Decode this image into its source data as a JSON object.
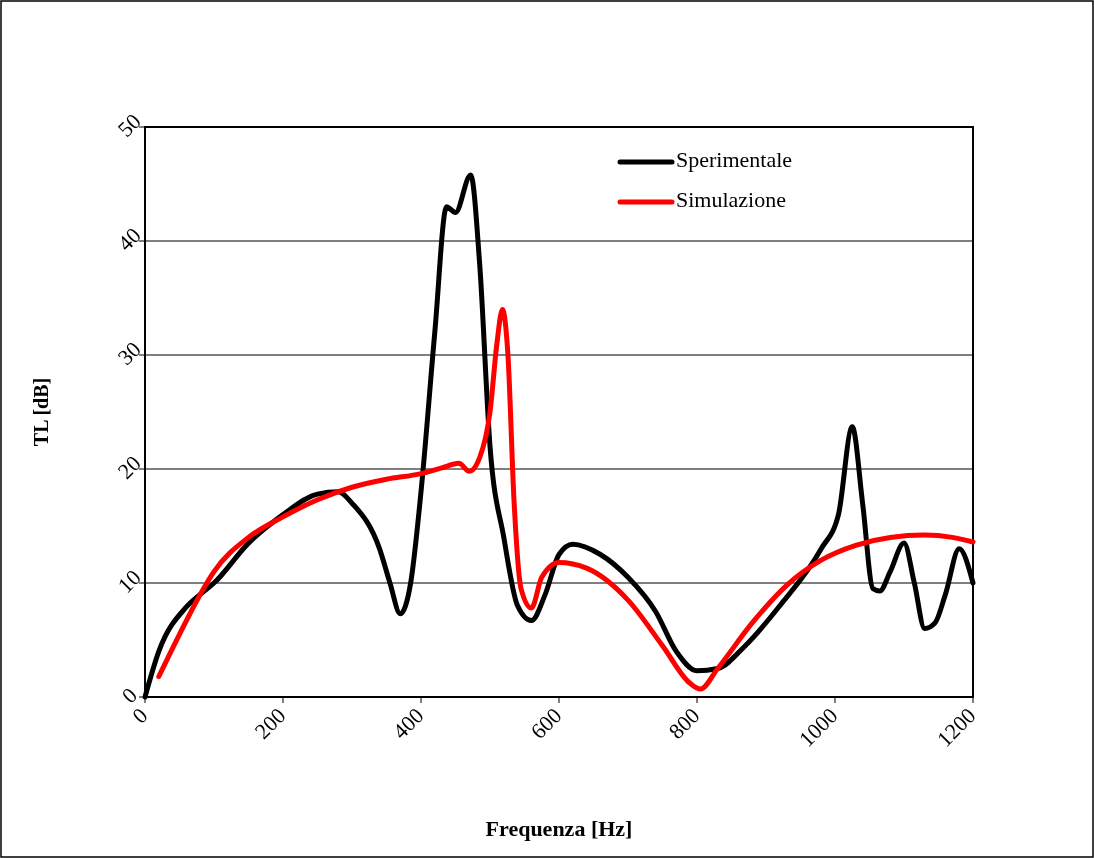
{
  "chart_data": {
    "type": "line",
    "xlabel": "Frequenza [Hz]",
    "ylabel": "TL [dB]",
    "xlim": [
      0,
      1200
    ],
    "xticks": [
      0,
      200,
      400,
      600,
      800,
      1000,
      1200
    ],
    "ylim": [
      0,
      50
    ],
    "yticks": [
      0,
      10,
      20,
      30,
      40,
      50
    ],
    "grid": "y",
    "legend": "top right",
    "marker": "none",
    "line_style": "solid",
    "series": [
      {
        "name": "Sperimentale",
        "color": "#000000",
        "x": [
          0,
          20,
          60,
          80,
          100,
          150,
          200,
          250,
          280,
          300,
          340,
          355,
          370,
          385,
          400,
          420,
          437,
          450,
          472,
          485,
          500,
          520,
          540,
          560,
          580,
          600,
          620,
          660,
          700,
          740,
          770,
          800,
          830,
          870,
          920,
          980,
          1005,
          1025,
          1040,
          1055,
          1065,
          1080,
          1100,
          1115,
          1130,
          1145,
          1160,
          1180,
          1200
        ],
        "values": [
          0,
          4,
          7.9,
          9,
          10,
          13.5,
          16,
          17.8,
          18,
          17,
          13,
          10,
          7.3,
          10,
          18,
          32,
          43,
          42.5,
          45.8,
          38,
          22,
          14,
          8,
          6.7,
          9,
          12.5,
          13.4,
          12.5,
          10.5,
          7.5,
          4,
          2.3,
          2.5,
          4.5,
          8,
          13,
          16,
          23.7,
          17,
          9.5,
          9.3,
          11,
          13.5,
          10,
          6,
          6.5,
          9,
          13,
          10
        ]
      },
      {
        "name": "Simulazione",
        "color": "#ff0000",
        "x": [
          20,
          50,
          80,
          100,
          150,
          200,
          250,
          300,
          350,
          400,
          430,
          455,
          470,
          485,
          500,
          510,
          518,
          526,
          535,
          545,
          560,
          575,
          600,
          640,
          700,
          750,
          790,
          805,
          830,
          880,
          930,
          980,
          1030,
          1080,
          1130,
          1170,
          1200
        ],
        "values": [
          1.8,
          5.5,
          9,
          11,
          14,
          15.8,
          17.3,
          18.4,
          19.1,
          19.6,
          20.1,
          20.5,
          19.8,
          21,
          25,
          31,
          34,
          30,
          17,
          9.5,
          7.8,
          10.5,
          11.8,
          11.3,
          8.5,
          4.5,
          1.2,
          0.7,
          2.5,
          6.5,
          9.8,
          12,
          13.3,
          14,
          14.2,
          14,
          13.6
        ]
      }
    ]
  }
}
